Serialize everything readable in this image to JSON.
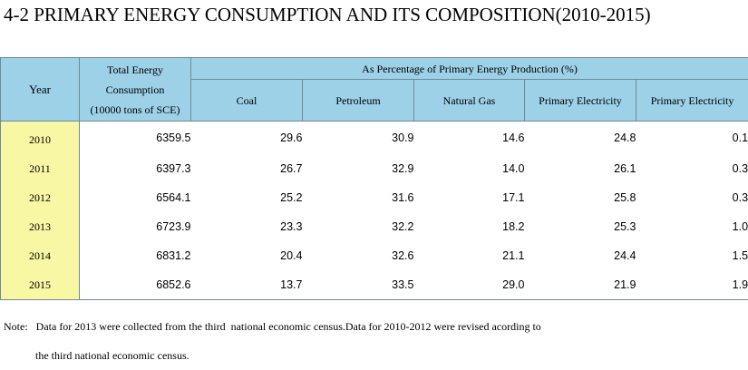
{
  "title": "4-2  PRIMARY ENERGY CONSUMPTION AND ITS COMPOSITION(2010-2015)",
  "headers": {
    "year": "Year",
    "total_line1": "Total Energy",
    "total_line2": "Consumption",
    "total_line3": "(10000 tons of SCE)",
    "group": "As Percentage of Primary Energy Production (%)",
    "columns": [
      "Coal",
      "Petroleum",
      "Natural Gas",
      "Primary Electricity",
      "Primary Electricity"
    ]
  },
  "rows": [
    {
      "year": "2010",
      "total": "6359.5",
      "values": [
        "29.6",
        "30.9",
        "14.6",
        "24.8",
        "0.1"
      ]
    },
    {
      "year": "2011",
      "total": "6397.3",
      "values": [
        "26.7",
        "32.9",
        "14.0",
        "26.1",
        "0.3"
      ]
    },
    {
      "year": "2012",
      "total": "6564.1",
      "values": [
        "25.2",
        "31.6",
        "17.1",
        "25.8",
        "0.3"
      ]
    },
    {
      "year": "2013",
      "total": "6723.9",
      "values": [
        "23.3",
        "32.2",
        "18.2",
        "25.3",
        "1.0"
      ]
    },
    {
      "year": "2014",
      "total": "6831.2",
      "values": [
        "20.4",
        "32.6",
        "21.1",
        "24.4",
        "1.5"
      ]
    },
    {
      "year": "2015",
      "total": "6852.6",
      "values": [
        "13.7",
        "33.5",
        "29.0",
        "21.9",
        "1.9"
      ]
    }
  ],
  "note_line1": "Note:   Data for 2013 were collected from the third  national economic census.Data for 2010-2012 were revised acording to",
  "note_line2": "the third national economic census.",
  "colors": {
    "header_bg": "#9dd1e8",
    "year_bg": "#f7f7a4",
    "border": "#6f8a96"
  }
}
